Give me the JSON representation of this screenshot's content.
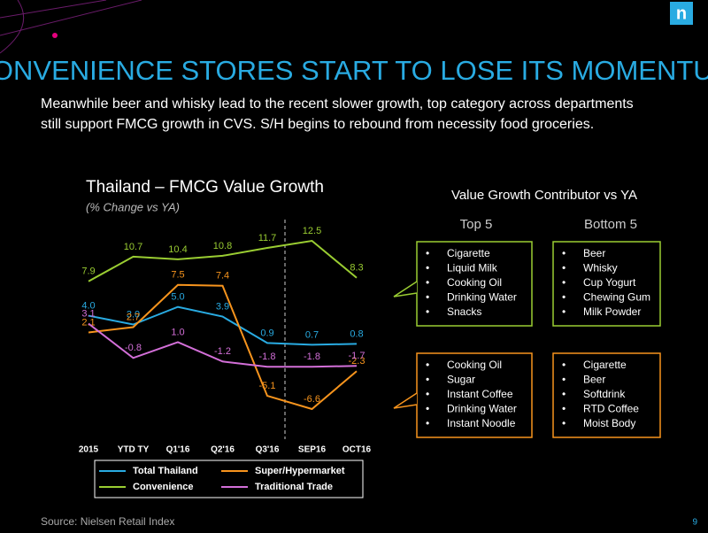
{
  "slide": {
    "title": "CONVENIENCE STORES START TO LOSE ITS MOMENTUM",
    "subtitle": [
      "Meanwhile beer and whisky lead to the recent slower growth, top category across departments",
      "still support FMCG growth in CVS.  S/H begins to rebound from necessity food groceries."
    ],
    "source": "Source: Nielsen Retail Index",
    "page": "9",
    "logo": "n"
  },
  "chart_data": {
    "type": "line",
    "title": "Thailand – FMCG Value Growth",
    "subtitle": "(% Change vs YA)",
    "categories": [
      "2015",
      "YTD TY",
      "Q1'16",
      "Q2'16",
      "Q3'16",
      "SEP16",
      "OCT16"
    ],
    "series": [
      {
        "name": "Total Thailand",
        "color": "#29abe2",
        "values": [
          4.0,
          3.0,
          5.0,
          3.9,
          0.9,
          0.7,
          0.8
        ],
        "value_labels": [
          "4.0",
          "3.0",
          "5.0",
          "3.9",
          "0.9",
          "0.7",
          "0.8"
        ]
      },
      {
        "name": "Super/Hypermarket",
        "color": "#f7941d",
        "values": [
          2.1,
          2.7,
          7.5,
          7.4,
          -5.1,
          -6.6,
          -2.3
        ],
        "value_labels": [
          "2.1",
          "2.7",
          "7.5",
          "7.4",
          "-5.1",
          "-6.6",
          "-2.3"
        ]
      },
      {
        "name": "Convenience",
        "color": "#9acd32",
        "values": [
          7.9,
          10.7,
          10.4,
          10.8,
          11.7,
          12.5,
          8.3
        ],
        "value_labels": [
          "7.9",
          "10.7",
          "10.4",
          "10.8",
          "11.7",
          "12.5",
          "8.3"
        ]
      },
      {
        "name": "Traditional Trade",
        "color": "#d36fd8",
        "values": [
          3.1,
          -0.8,
          1.0,
          -1.2,
          -1.8,
          -1.8,
          -1.7
        ],
        "value_labels": [
          "3.1",
          "-0.8",
          "1.0",
          "-1.2",
          "-1.8",
          "-1.8",
          "-1.7"
        ]
      }
    ]
  },
  "contributors": {
    "title": "Value Growth Contributor vs YA",
    "top_label": "Top 5",
    "bottom_label": "Bottom 5",
    "rows": [
      {
        "color": "#9acd32",
        "top": [
          "Cigarette",
          "Liquid Milk",
          "Cooking Oil",
          "Drinking Water",
          "Snacks"
        ],
        "bottom": [
          "Beer",
          "Whisky",
          "Cup Yogurt",
          "Chewing Gum",
          "Milk Powder"
        ]
      },
      {
        "color": "#f7941d",
        "top": [
          "Cooking Oil",
          "Sugar",
          "Instant Coffee",
          "Drinking Water",
          "Instant Noodle"
        ],
        "bottom": [
          "Cigarette",
          "Beer",
          "Softdrink",
          "RTD Coffee",
          "Moist Body"
        ]
      }
    ]
  }
}
